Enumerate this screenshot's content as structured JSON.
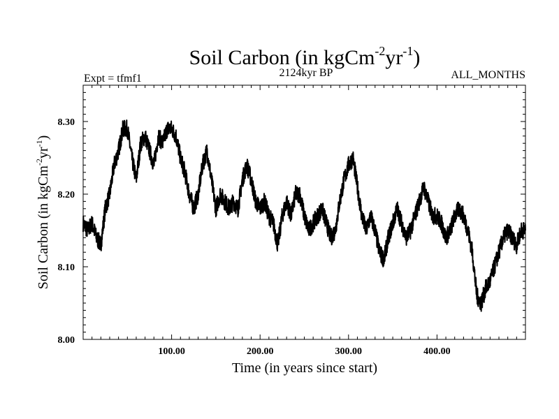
{
  "chart_data": {
    "type": "line",
    "title_main": "Soil Carbon (in kgCm",
    "title_sup1": "-2",
    "title_mid": "yr",
    "title_sup2": "-1",
    "title_end": ")",
    "subtitle": "2124kyr BP",
    "left_label": "Expt = tfmf1",
    "right_label": "ALL_MONTHS",
    "xlabel": "Time (in years since start)",
    "ylabel_main": "Soil Carbon (in kgCm",
    "ylabel_sup1": "-2",
    "ylabel_mid": "yr",
    "ylabel_sup2": "-1",
    "ylabel_end": ")",
    "xlim": [
      0,
      500
    ],
    "ylim": [
      8.0,
      8.35
    ],
    "xticks": [
      100,
      200,
      300,
      400
    ],
    "xtick_labels": [
      "100.00",
      "200.00",
      "300.00",
      "400.00"
    ],
    "yticks": [
      8.0,
      8.1,
      8.2,
      8.3
    ],
    "ytick_labels": [
      "8.00",
      "8.10",
      "8.20",
      "8.30"
    ],
    "series": [
      {
        "name": "Soil Carbon",
        "x": [
          0,
          5,
          10,
          15,
          20,
          25,
          30,
          35,
          40,
          45,
          50,
          55,
          60,
          65,
          70,
          75,
          80,
          85,
          90,
          95,
          100,
          105,
          110,
          115,
          120,
          125,
          130,
          135,
          140,
          145,
          150,
          155,
          160,
          165,
          170,
          175,
          180,
          185,
          190,
          195,
          200,
          205,
          210,
          215,
          220,
          225,
          230,
          235,
          240,
          245,
          250,
          255,
          260,
          265,
          270,
          275,
          280,
          285,
          290,
          295,
          300,
          305,
          310,
          315,
          320,
          325,
          330,
          335,
          340,
          345,
          350,
          355,
          360,
          365,
          370,
          375,
          380,
          385,
          390,
          395,
          400,
          405,
          410,
          415,
          420,
          425,
          430,
          435,
          440,
          445,
          450,
          455,
          460,
          465,
          470,
          475,
          480,
          485,
          490,
          495,
          500
        ],
        "y": [
          8.16,
          8.15,
          8.16,
          8.14,
          8.13,
          8.18,
          8.2,
          8.24,
          8.26,
          8.29,
          8.29,
          8.25,
          8.22,
          8.27,
          8.28,
          8.26,
          8.24,
          8.28,
          8.27,
          8.29,
          8.29,
          8.28,
          8.25,
          8.23,
          8.2,
          8.18,
          8.2,
          8.24,
          8.26,
          8.22,
          8.18,
          8.2,
          8.19,
          8.18,
          8.19,
          8.18,
          8.22,
          8.24,
          8.22,
          8.19,
          8.18,
          8.19,
          8.17,
          8.16,
          8.13,
          8.17,
          8.19,
          8.17,
          8.2,
          8.2,
          8.17,
          8.15,
          8.16,
          8.17,
          8.18,
          8.16,
          8.14,
          8.15,
          8.19,
          8.22,
          8.24,
          8.25,
          8.21,
          8.17,
          8.15,
          8.17,
          8.15,
          8.12,
          8.11,
          8.14,
          8.16,
          8.18,
          8.16,
          8.14,
          8.15,
          8.17,
          8.19,
          8.21,
          8.19,
          8.17,
          8.17,
          8.16,
          8.14,
          8.15,
          8.17,
          8.18,
          8.17,
          8.15,
          8.12,
          8.06,
          8.05,
          8.07,
          8.08,
          8.1,
          8.12,
          8.14,
          8.15,
          8.14,
          8.13,
          8.15,
          8.15
        ]
      }
    ]
  }
}
